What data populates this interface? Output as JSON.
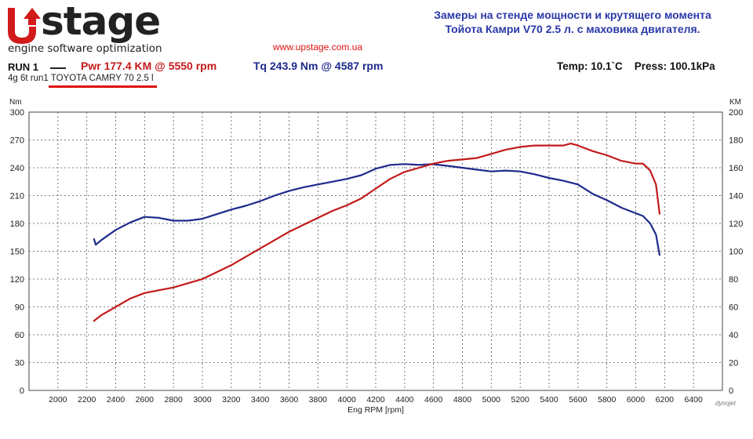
{
  "logo": {
    "wordmark": "Upstage",
    "tagline": "engine software optimization"
  },
  "website": "www.upstage.com.ua",
  "heading": {
    "line1": "Замеры на стенде мощности и крутящего момента",
    "line2": "Тойота Камри V70 2.5 л. с маховика двигателя."
  },
  "run": {
    "label": "RUN 1",
    "power_summary": "Pwr  177.4 KM @ 5550 rpm",
    "torque_summary": "Tq 243.9 Nm @ 4587 rpm",
    "description": "4g 6t run1 TOYOTA CAMRY 70 2.5 l"
  },
  "conditions": {
    "temp": "Temp: 10.1`C",
    "press": "Press: 100.1kPa"
  },
  "watermark": "dynojet",
  "colors": {
    "power": "#c21a1a",
    "torque": "#1e2a8a",
    "grid": "#555555",
    "heading": "#2a38a8"
  },
  "chart_data": {
    "type": "line",
    "xlabel": "Eng RPM [rpm]",
    "ylabel_left": "Nm",
    "ylabel_right": "KM",
    "xlim": [
      1800,
      6600
    ],
    "ylim_left": [
      0,
      300
    ],
    "ylim_right": [
      0,
      200
    ],
    "x_ticks": [
      2000,
      2200,
      2400,
      2600,
      2800,
      3000,
      3200,
      3400,
      3600,
      3800,
      4000,
      4200,
      4400,
      4600,
      4800,
      5000,
      5200,
      5400,
      5600,
      5800,
      6000,
      6200,
      6400
    ],
    "y_ticks_left": [
      0,
      30,
      60,
      90,
      120,
      150,
      180,
      210,
      240,
      270,
      300
    ],
    "y_ticks_right": [
      0,
      20,
      40,
      60,
      80,
      100,
      120,
      140,
      160,
      180,
      200
    ],
    "grid": true,
    "series": [
      {
        "axis": "left",
        "color": "#1e2a8a",
        "x": [
          2250,
          2262,
          2300,
          2400,
          2500,
          2600,
          2700,
          2800,
          2900,
          3000,
          3100,
          3200,
          3300,
          3400,
          3500,
          3600,
          3700,
          3800,
          3900,
          4000,
          4100,
          4200,
          4300,
          4400,
          4500,
          4587,
          4700,
          4800,
          4900,
          5000,
          5100,
          5200,
          5300,
          5400,
          5500,
          5600,
          5700,
          5800,
          5900,
          6000,
          6050,
          6100,
          6140,
          6165
        ],
        "y": [
          163,
          157,
          162,
          173,
          181,
          187,
          186,
          183,
          183,
          185,
          190,
          195,
          199,
          204,
          210,
          215,
          219,
          222,
          225,
          228,
          232,
          239,
          243,
          244,
          243,
          243.9,
          242,
          240,
          238,
          236,
          237,
          236,
          233,
          229,
          226,
          222,
          212,
          205,
          197,
          191,
          188,
          180,
          168,
          146
        ]
      },
      {
        "axis": "right",
        "color": "#c21a1a",
        "x": [
          2250,
          2300,
          2400,
          2500,
          2600,
          2700,
          2800,
          2900,
          3000,
          3100,
          3200,
          3300,
          3400,
          3500,
          3600,
          3700,
          3800,
          3900,
          4000,
          4100,
          4200,
          4300,
          4400,
          4500,
          4600,
          4700,
          4800,
          4900,
          5000,
          5100,
          5200,
          5300,
          5400,
          5500,
          5550,
          5600,
          5700,
          5800,
          5900,
          6000,
          6050,
          6100,
          6140,
          6165
        ],
        "y": [
          50,
          54,
          60,
          66,
          70,
          72,
          74,
          77,
          80,
          85,
          90,
          96,
          102,
          108,
          114,
          119,
          124,
          129,
          133,
          138,
          145,
          152,
          157,
          160,
          163,
          165,
          166,
          167,
          170,
          173,
          175,
          176,
          176,
          176,
          177.4,
          176,
          172,
          169,
          165,
          163,
          163,
          158,
          148,
          127
        ]
      }
    ]
  }
}
